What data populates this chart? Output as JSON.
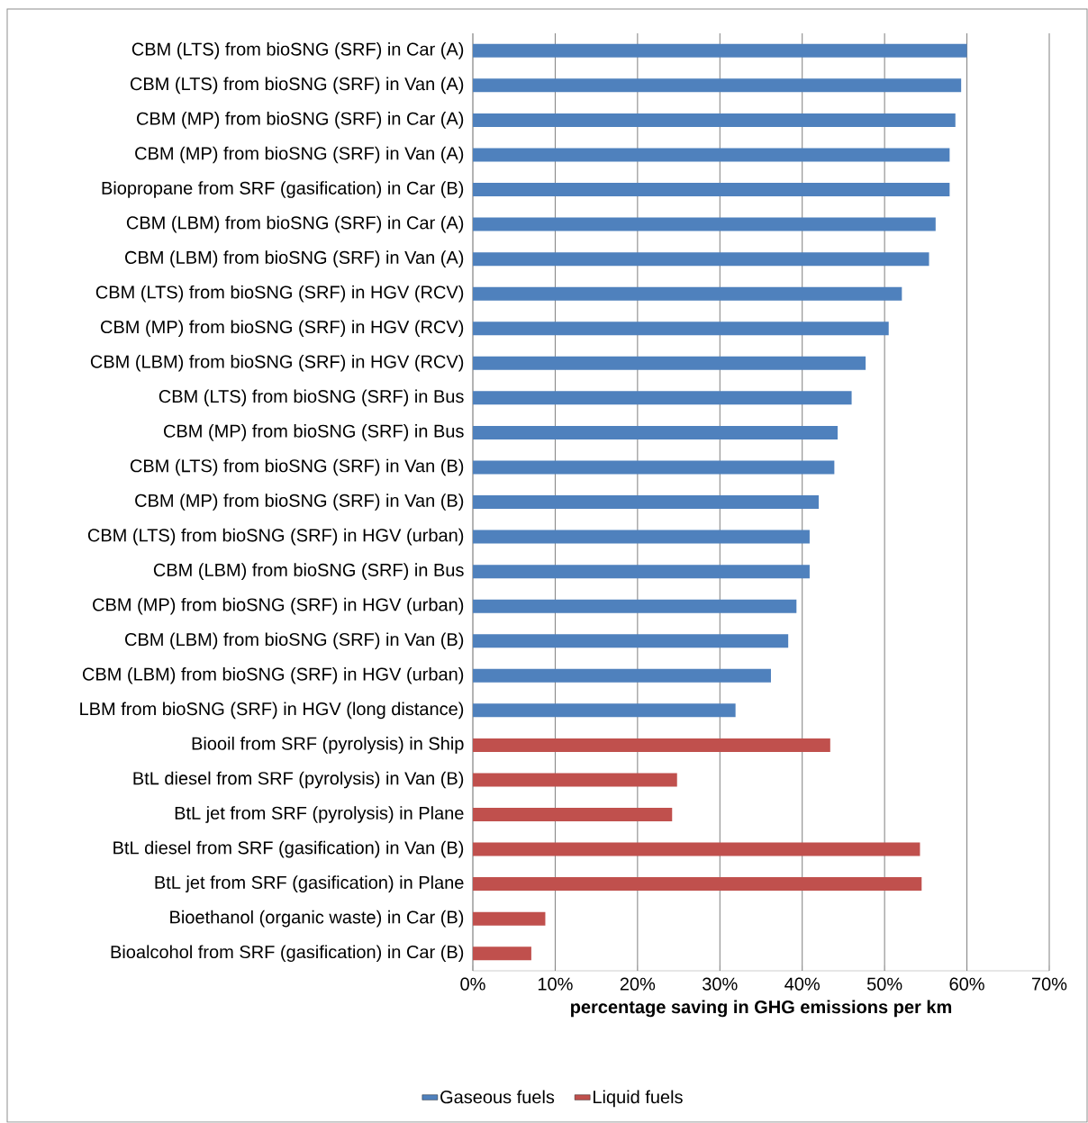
{
  "chart_data": {
    "type": "bar",
    "orientation": "horizontal",
    "categories": [
      "CBM (LTS) from bioSNG (SRF) in Car (A)",
      "CBM (LTS) from bioSNG (SRF) in Van (A)",
      "CBM (MP) from bioSNG (SRF) in Car (A)",
      "CBM (MP) from bioSNG (SRF) in Van (A)",
      "Biopropane from SRF (gasification) in Car (B)",
      "CBM (LBM) from bioSNG (SRF) in Car (A)",
      "CBM (LBM) from bioSNG (SRF) in Van (A)",
      "CBM (LTS) from bioSNG (SRF) in HGV (RCV)",
      "CBM (MP) from bioSNG (SRF) in HGV (RCV)",
      "CBM (LBM) from bioSNG (SRF) in HGV (RCV)",
      "CBM (LTS) from bioSNG (SRF) in Bus",
      "CBM (MP) from bioSNG (SRF) in Bus",
      "CBM (LTS) from bioSNG (SRF) in Van (B)",
      "CBM (MP) from bioSNG (SRF) in Van (B)",
      "CBM (LTS) from bioSNG (SRF) in HGV (urban)",
      "CBM (LBM) from bioSNG (SRF) in Bus",
      "CBM (MP) from bioSNG (SRF) in HGV (urban)",
      "CBM (LBM) from bioSNG (SRF) in Van (B)",
      "CBM (LBM) from bioSNG (SRF) in HGV (urban)",
      "LBM from bioSNG (SRF) in HGV (long distance)",
      "Biooil from SRF (pyrolysis) in Ship",
      "BtL diesel from SRF (pyrolysis) in Van (B)",
      "BtL jet from SRF (pyrolysis) in Plane",
      "BtL diesel from SRF (gasification) in Van (B)",
      "BtL jet from SRF  (gasification) in Plane",
      "Bioethanol (organic waste) in Car (B)",
      "Bioalcohol from SRF (gasification) in Car (B)"
    ],
    "series": [
      {
        "name": "Gaseous fuels",
        "color": "#4f81bd",
        "values": [
          60,
          59.3,
          58.6,
          57.9,
          57.9,
          56.2,
          55.4,
          52.1,
          50.5,
          47.7,
          46.0,
          44.3,
          43.9,
          42.0,
          40.9,
          40.9,
          39.3,
          38.3,
          36.2,
          31.9,
          null,
          null,
          null,
          null,
          null,
          null,
          null
        ]
      },
      {
        "name": "Liquid fuels",
        "color": "#c0504d",
        "values": [
          null,
          null,
          null,
          null,
          null,
          null,
          null,
          null,
          null,
          null,
          null,
          null,
          null,
          null,
          null,
          null,
          null,
          null,
          null,
          null,
          43.4,
          24.8,
          24.2,
          54.3,
          54.5,
          8.8,
          7.1
        ]
      }
    ],
    "xlim": [
      0,
      70
    ],
    "xticks": [
      {
        "value": 0,
        "label": "0%"
      },
      {
        "value": 10,
        "label": "10%"
      },
      {
        "value": 20,
        "label": "20%"
      },
      {
        "value": 30,
        "label": "30%"
      },
      {
        "value": 40,
        "label": "40%"
      },
      {
        "value": 50,
        "label": "50%"
      },
      {
        "value": 60,
        "label": "60%"
      },
      {
        "value": 70,
        "label": "70%"
      }
    ],
    "xlabel": "percentage saving  in GHG emissions  per km",
    "grid": "x",
    "legend": "bottom"
  }
}
